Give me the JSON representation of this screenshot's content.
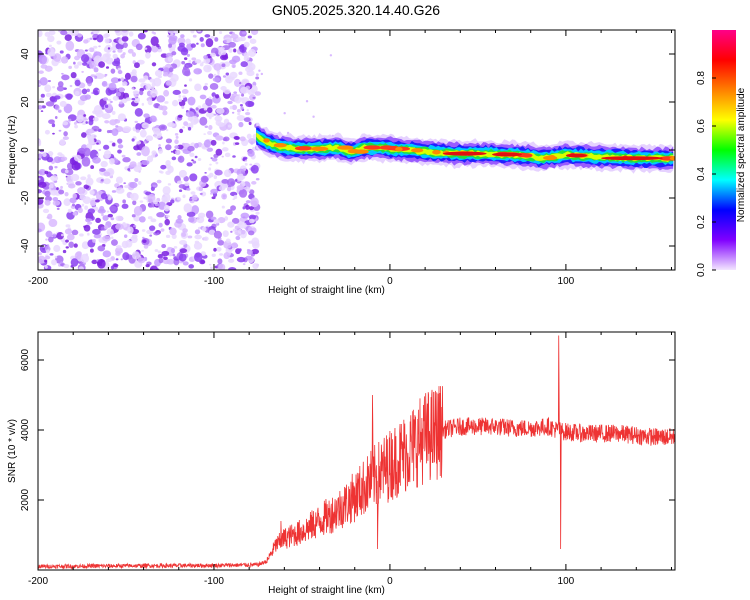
{
  "figure": {
    "title": "GN05.2025.320.14.40.G26"
  },
  "chart_data": [
    {
      "type": "heatmap",
      "name": "spectrogram",
      "xlabel": "Height of straight line (km)",
      "ylabel": "Frequency (Hz)",
      "xlim": [
        -200,
        162
      ],
      "ylim": [
        -50,
        50
      ],
      "x_ticks": [
        -200,
        -100,
        0,
        100
      ],
      "y_ticks": [
        -40,
        -20,
        0,
        20,
        40
      ],
      "noise_region_x": [
        -200,
        -75
      ],
      "ridge": {
        "x": [
          -76,
          -72,
          -66,
          -60,
          -50,
          -40,
          -30,
          -22,
          -15,
          -5,
          0,
          10,
          25,
          40,
          55,
          70,
          80,
          85,
          90,
          100,
          110,
          125,
          140,
          155,
          162
        ],
        "freq": [
          6,
          4,
          2,
          1,
          0.5,
          0.5,
          1,
          -1,
          1,
          1,
          0.5,
          0,
          -1,
          -1.5,
          -1.5,
          -2,
          -2.5,
          -3.5,
          -3,
          -2,
          -2.5,
          -3,
          -3.5,
          -3.5,
          -3.5
        ]
      },
      "colorbar": {
        "label": "Normalized spectral amplitude",
        "range": [
          0,
          1
        ],
        "ticks": [
          "0.0",
          "0.2",
          "0.4",
          "0.6",
          "0.8"
        ],
        "colors": [
          "#f3e6ff",
          "#8000ff",
          "#0000ff",
          "#00ffff",
          "#00ff00",
          "#ffff00",
          "#ff8000",
          "#ff0000",
          "#ff0088"
        ]
      }
    },
    {
      "type": "line",
      "name": "snr",
      "xlabel": "Height of straight line (km)",
      "ylabel": "SNR (10 * v/v)",
      "xlim": [
        -200,
        162
      ],
      "ylim": [
        0,
        6800
      ],
      "x_ticks": [
        -200,
        -100,
        0,
        100
      ],
      "y_ticks": [
        2000,
        4000,
        6000
      ],
      "color": "#ee3333",
      "series": [
        {
          "name": "SNR",
          "envelope_x": [
            -200,
            -150,
            -100,
            -75,
            -70,
            -65,
            -60,
            -50,
            -40,
            -30,
            -20,
            -10,
            0,
            10,
            20,
            30,
            40,
            50,
            60,
            70,
            80,
            90,
            95,
            100,
            110,
            120,
            130,
            140,
            150,
            162
          ],
          "envelope_y": [
            100,
            120,
            130,
            150,
            250,
            700,
            900,
            1100,
            1400,
            1700,
            2100,
            2600,
            3000,
            3400,
            3800,
            4000,
            4100,
            4100,
            4100,
            4050,
            4050,
            4100,
            4000,
            3950,
            3900,
            3900,
            3900,
            3850,
            3800,
            3800
          ],
          "spikes": [
            {
              "x": -62,
              "y": 1400
            },
            {
              "x": -10,
              "y": 5000
            },
            {
              "x": -7,
              "y": 600
            },
            {
              "x": 96,
              "y": 6700
            },
            {
              "x": 97,
              "y": 600
            }
          ]
        }
      ]
    }
  ]
}
